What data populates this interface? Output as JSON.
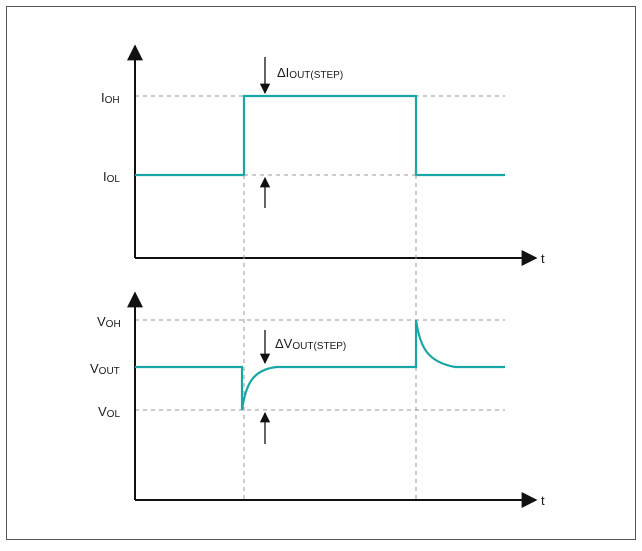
{
  "current_plot": {
    "y_labels": {
      "high": {
        "main": "I",
        "sub": "OH"
      },
      "low": {
        "main": "I",
        "sub": "OL"
      }
    },
    "x_axis_label": "t",
    "step_annotation": {
      "prefix": "ΔI",
      "sub": "OUT(STEP)"
    }
  },
  "voltage_plot": {
    "y_labels": {
      "high": {
        "main": "V",
        "sub": "OH"
      },
      "mid": {
        "main": "V",
        "sub": "OUT"
      },
      "low": {
        "main": "V",
        "sub": "OL"
      }
    },
    "x_axis_label": "t",
    "step_annotation": {
      "prefix": "ΔV",
      "sub": "OUT(STEP)"
    }
  },
  "colors": {
    "trace": "#1aa6a6",
    "axis": "#111111",
    "guide": "#9a9a9a",
    "frame": "#555555"
  }
}
